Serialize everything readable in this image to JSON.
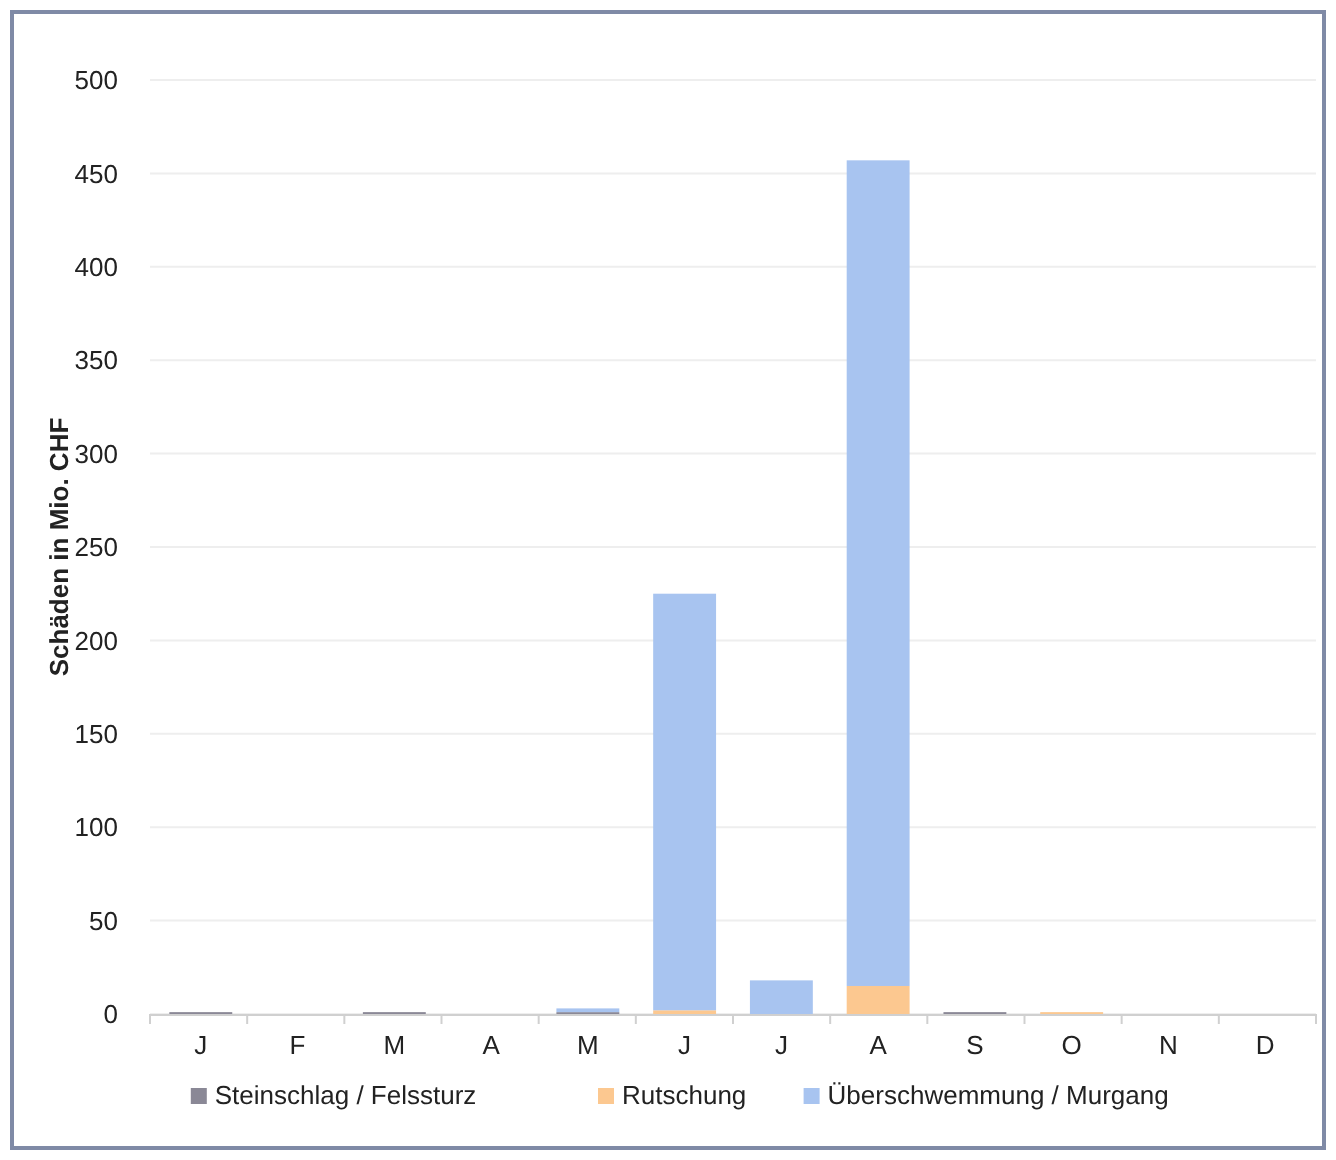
{
  "chart_data": {
    "type": "bar",
    "stacked": true,
    "ylabel": "Schäden in Mio. CHF",
    "categories": [
      "J",
      "F",
      "M",
      "A",
      "M",
      "J",
      "J",
      "A",
      "S",
      "O",
      "N",
      "D"
    ],
    "series": [
      {
        "name": "Steinschlag / Felssturz",
        "color": "#8a8896",
        "values": [
          1,
          0,
          1,
          0,
          1,
          0,
          0,
          0,
          1,
          0,
          0,
          0
        ]
      },
      {
        "name": "Rutschung",
        "color": "#fcc890",
        "values": [
          0,
          0,
          0,
          0,
          0,
          2,
          0,
          15,
          0,
          1,
          0,
          0
        ]
      },
      {
        "name": "Überschwemmung / Murgang",
        "color": "#a8c4f0",
        "values": [
          0,
          0,
          0,
          0,
          2,
          223,
          18,
          442,
          0,
          0,
          0,
          0
        ]
      }
    ],
    "ylim": [
      0,
      500
    ],
    "yticks": [
      0,
      50,
      100,
      150,
      200,
      250,
      300,
      350,
      400,
      450,
      500
    ],
    "grid": "y",
    "legend": "bottom"
  }
}
